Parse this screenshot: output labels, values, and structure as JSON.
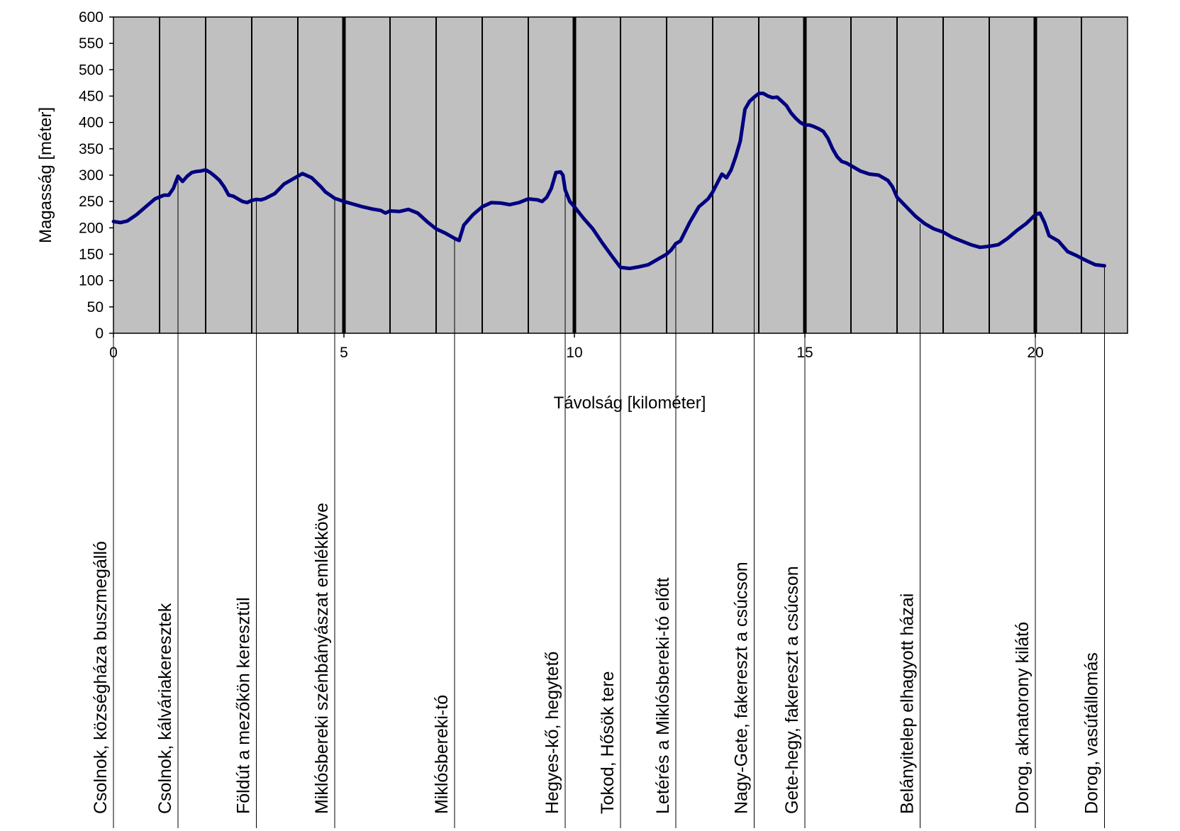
{
  "chart_data": {
    "type": "line",
    "title": "",
    "xlabel": "Távolság [kilométer]",
    "ylabel": "Magasság [méter]",
    "xlim": [
      0,
      22
    ],
    "ylim": [
      0,
      600
    ],
    "x_ticks": [
      0,
      5,
      10,
      15,
      20
    ],
    "y_ticks": [
      0,
      50,
      100,
      150,
      200,
      250,
      300,
      350,
      400,
      450,
      500,
      550,
      600
    ],
    "grid": "vertical lines every 1 km, heavier every 5 km",
    "colors": {
      "plot_background": "#c0c0c0",
      "line": "#000080",
      "grid": "#000000"
    },
    "series": [
      {
        "x": [
          0,
          0.15,
          0.3,
          0.5,
          0.7,
          0.9,
          1.1,
          1.2,
          1.3,
          1.4,
          1.5,
          1.6,
          1.7,
          1.8,
          1.9,
          2.0,
          2.1,
          2.2,
          2.3,
          2.4,
          2.5,
          2.6,
          2.7,
          2.8,
          2.9,
          3.0,
          3.1,
          3.2,
          3.3,
          3.5,
          3.7,
          3.9,
          4.1,
          4.3,
          4.5,
          4.6,
          4.7,
          4.8,
          5.0,
          5.2,
          5.4,
          5.6,
          5.8,
          5.9,
          6.0,
          6.2,
          6.4,
          6.6,
          6.8,
          7.0,
          7.2,
          7.4,
          7.5,
          7.6,
          7.7,
          7.8,
          8.0,
          8.2,
          8.4,
          8.6,
          8.8,
          9.0,
          9.2,
          9.3,
          9.4,
          9.5,
          9.6,
          9.7,
          9.75,
          9.8,
          9.9,
          10.0,
          10.2,
          10.4,
          10.6,
          10.8,
          11.0,
          11.2,
          11.4,
          11.6,
          11.8,
          12.0,
          12.1,
          12.2,
          12.3,
          12.5,
          12.7,
          12.9,
          13.0,
          13.1,
          13.2,
          13.3,
          13.4,
          13.5,
          13.6,
          13.7,
          13.8,
          13.9,
          14.0,
          14.1,
          14.2,
          14.3,
          14.4,
          14.5,
          14.6,
          14.7,
          14.8,
          14.9,
          15.0,
          15.1,
          15.2,
          15.3,
          15.4,
          15.5,
          15.6,
          15.7,
          15.8,
          15.9,
          16.0,
          16.2,
          16.4,
          16.6,
          16.7,
          16.8,
          16.9,
          17.0,
          17.2,
          17.4,
          17.6,
          17.8,
          18.0,
          18.2,
          18.4,
          18.6,
          18.8,
          19.0,
          19.2,
          19.4,
          19.6,
          19.8,
          20.0,
          20.1,
          20.2,
          20.3,
          20.5,
          20.7,
          20.9,
          21.1,
          21.3,
          21.5
        ],
        "y": [
          212,
          210,
          213,
          225,
          240,
          255,
          262,
          262,
          275,
          298,
          288,
          298,
          305,
          307,
          308,
          310,
          305,
          298,
          290,
          278,
          262,
          260,
          255,
          250,
          248,
          252,
          254,
          253,
          256,
          265,
          283,
          293,
          303,
          295,
          278,
          268,
          262,
          256,
          250,
          245,
          240,
          236,
          233,
          228,
          232,
          231,
          235,
          228,
          212,
          198,
          190,
          180,
          176,
          205,
          215,
          225,
          240,
          248,
          247,
          244,
          248,
          255,
          253,
          250,
          258,
          275,
          305,
          306,
          300,
          272,
          250,
          240,
          218,
          198,
          172,
          148,
          125,
          123,
          126,
          130,
          140,
          150,
          158,
          170,
          175,
          210,
          240,
          255,
          268,
          285,
          302,
          295,
          310,
          335,
          365,
          425,
          440,
          448,
          455,
          455,
          450,
          447,
          448,
          440,
          432,
          418,
          408,
          400,
          395,
          395,
          392,
          388,
          383,
          370,
          350,
          335,
          326,
          323,
          318,
          308,
          302,
          300,
          295,
          290,
          278,
          258,
          240,
          222,
          208,
          198,
          192,
          182,
          175,
          168,
          163,
          165,
          168,
          180,
          195,
          208,
          225,
          228,
          210,
          185,
          175,
          155,
          147,
          138,
          130,
          128
        ]
      }
    ],
    "waypoints": [
      {
        "km": 0.0,
        "label": "Csolnok, községháza buszmegálló"
      },
      {
        "km": 1.4,
        "label": "Csolnok, kálváriakeresztek"
      },
      {
        "km": 3.1,
        "label": "Földút a mezőkön keresztül"
      },
      {
        "km": 4.8,
        "label": "Miklósbereki szénbányászat emlékköve"
      },
      {
        "km": 7.4,
        "label": "Miklósbereki-tó"
      },
      {
        "km": 9.8,
        "label": "Hegyes-kő, hegytető"
      },
      {
        "km": 11.0,
        "label": "Tokod, Hősök tere"
      },
      {
        "km": 12.2,
        "label": "Letérés a Miklósbereki-tó előtt"
      },
      {
        "km": 13.9,
        "label": "Nagy-Gete, fakereszt a csúcson"
      },
      {
        "km": 15.0,
        "label": "Gete-hegy, fakereszt a csúcson"
      },
      {
        "km": 17.5,
        "label": "Belányitelep elhagyott házai"
      },
      {
        "km": 20.0,
        "label": "Dorog, aknatorony kilátó"
      },
      {
        "km": 21.5,
        "label": "Dorog, vasútállomás"
      }
    ]
  }
}
